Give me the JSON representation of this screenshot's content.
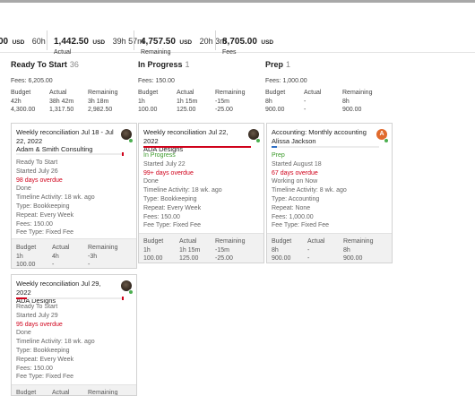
{
  "summary": [
    {
      "amount": "00",
      "currency": "USD",
      "hours": "60h",
      "label": ""
    },
    {
      "amount": "1,442.50",
      "currency": "USD",
      "hours": "39h 57m",
      "label": "Actual"
    },
    {
      "amount": "4,757.50",
      "currency": "USD",
      "hours": "20h 3m",
      "label": "Remaining"
    },
    {
      "amount": "8,705.00",
      "currency": "USD",
      "hours": "",
      "label": "Fees"
    }
  ],
  "columns": [
    {
      "title": "Ready To Start",
      "count": "36",
      "fees": "Fees: 6,205.00",
      "stat_headers": [
        "Budget",
        "Actual",
        "Remaining"
      ],
      "stats": [
        [
          "42h",
          "38h 42m",
          "3h 18m"
        ],
        [
          "4,300.00",
          "1,317.50",
          "2,982.50"
        ]
      ]
    },
    {
      "title": "In Progress",
      "count": "1",
      "fees": "Fees: 150.00",
      "stat_headers": [
        "Budget",
        "Actual",
        "Remaining"
      ],
      "stats": [
        [
          "1h",
          "1h 15m",
          "-15m"
        ],
        [
          "100.00",
          "125.00",
          "-25.00"
        ]
      ]
    },
    {
      "title": "Prep",
      "count": "1",
      "fees": "Fees: 1,000.00",
      "stat_headers": [
        "Budget",
        "Actual",
        "Remaining"
      ],
      "stats": [
        [
          "8h",
          "-",
          "8h"
        ],
        [
          "900.00",
          "-",
          "900.00"
        ]
      ]
    }
  ],
  "cards": [
    {
      "title": "Weekly reconciliation Jul 18 - Jul 22, 2022",
      "client": "Adam & Smith Consulting",
      "avatar": "user-avatar",
      "progress_percent": 0,
      "status": "Ready To Start",
      "started": "Started July 26",
      "overdue": "98 days overdue",
      "done": "Done",
      "timeline": "Timeline Activity: 18 wk. ago",
      "type": "Type: Bookkeeping",
      "repeat": "Repeat: Every Week",
      "fees": "Fees: 150.00",
      "fee_type": "Fee Type: Fixed Fee",
      "foot_headers": [
        "Budget",
        "Actual",
        "Remaining"
      ],
      "foot": [
        [
          "1h",
          "4h",
          "-3h"
        ],
        [
          "100.00",
          "-",
          "-"
        ]
      ]
    },
    {
      "title": "Weekly reconciliation Jul 22, 2022",
      "client": "ADA Designs",
      "avatar": "user-avatar",
      "progress_percent": 100,
      "status": "In Progress",
      "started": "Started July 22",
      "overdue": "99+ days overdue",
      "done": "Done",
      "timeline": "Timeline Activity: 18 wk. ago",
      "type": "Type: Bookkeeping",
      "repeat": "Repeat: Every Week",
      "fees": "Fees: 150.00",
      "fee_type": "Fee Type: Fixed Fee",
      "foot_headers": [
        "Budget",
        "Actual",
        "Remaining"
      ],
      "foot": [
        [
          "1h",
          "1h 15m",
          "-15m"
        ],
        [
          "100.00",
          "125.00",
          "-25.00"
        ]
      ]
    },
    {
      "title": "Accounting: Monthly accounting",
      "client": "Alissa Jackson",
      "avatar_letter": "A",
      "progress_percent": 5,
      "status": "Prep",
      "started": "Started August 18",
      "overdue": "67 days overdue",
      "done": "Working on Now",
      "timeline": "Timeline Activity: 8 wk. ago",
      "type": "Type: Accounting",
      "repeat": "Repeat: None",
      "fees": "Fees: 1,000.00",
      "fee_type": "Fee Type: Fixed Fee",
      "foot_headers": [
        "Budget",
        "Actual",
        "Remaining"
      ],
      "foot": [
        [
          "8h",
          "-",
          "8h"
        ],
        [
          "900.00",
          "-",
          "900.00"
        ]
      ]
    },
    {
      "title": "Weekly reconciliation Jul 29, 2022",
      "client": "ADA Designs",
      "avatar": "user-avatar",
      "progress_percent": 0,
      "status": "Ready To Start",
      "started": "Started July 29",
      "overdue": "95 days overdue",
      "done": "Done",
      "timeline": "Timeline Activity: 18 wk. ago",
      "type": "Type: Bookkeeping",
      "repeat": "Repeat: Every Week",
      "fees": "Fees: 150.00",
      "fee_type": "Fee Type: Fixed Fee",
      "foot_headers": [
        "Budget",
        "Actual",
        "Remaining"
      ],
      "foot": [
        [
          "",
          "",
          ""
        ],
        [
          "",
          "",
          ""
        ]
      ]
    }
  ],
  "colors": {
    "overdue": "#d0021b",
    "in_progress": "#3c9a2b",
    "prep_bar": "#2f6fc4",
    "progress_bar": "#d0021b"
  }
}
